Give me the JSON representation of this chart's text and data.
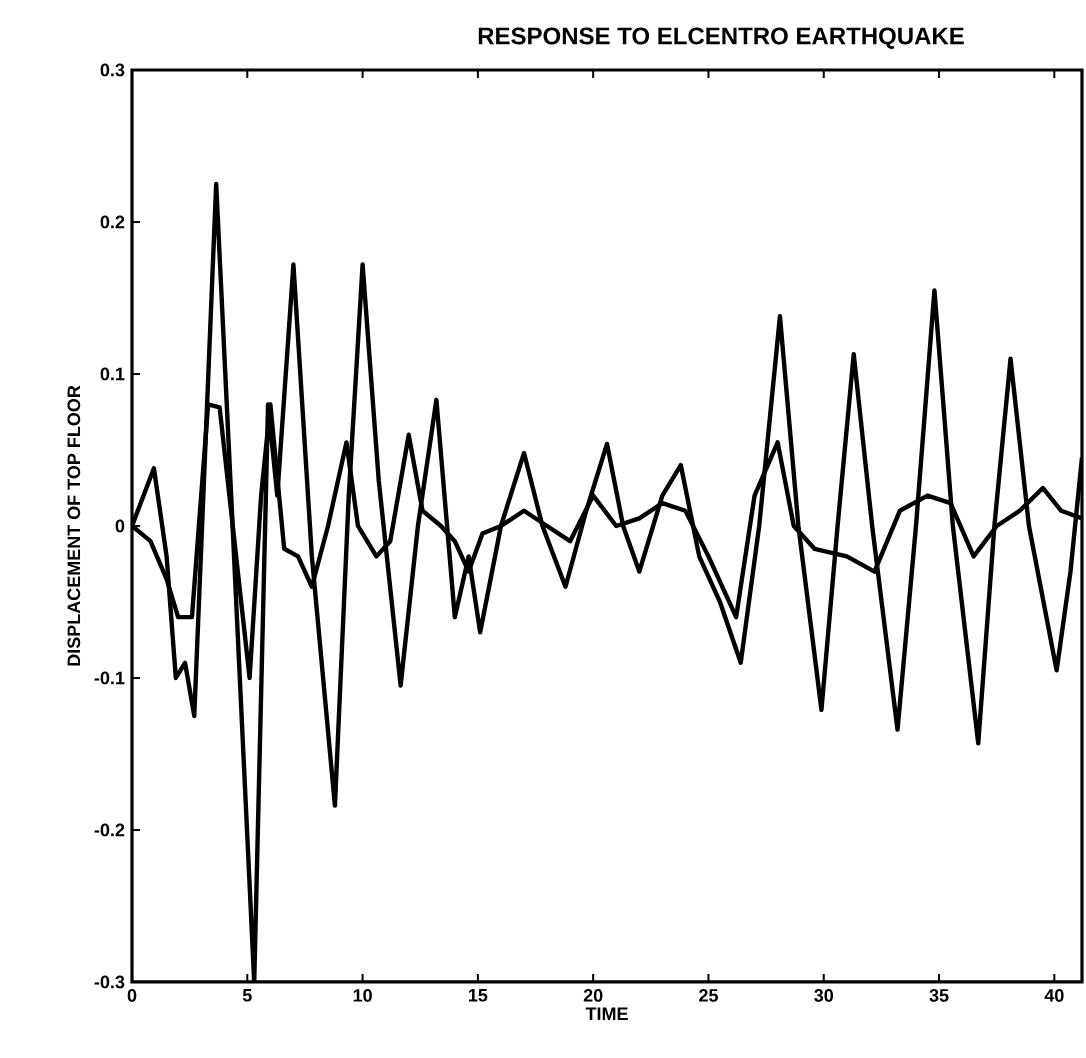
{
  "chart_data": {
    "type": "line",
    "title": "RESPONSE TO ELCENTRO EARTHQUAKE",
    "xlabel": "TIME",
    "ylabel": "DISPLACEMENT OF TOP FLOOR",
    "xlim": [
      0,
      41.2
    ],
    "ylim": [
      -0.3,
      0.3
    ],
    "xticks": [
      0,
      5,
      10,
      15,
      20,
      25,
      30,
      35,
      40
    ],
    "yticks": [
      {
        "value": -0.3,
        "label": "-0.3"
      },
      {
        "value": -0.2,
        "label": "-0.2"
      },
      {
        "value": -0.1,
        "label": "-0.1"
      },
      {
        "value": 0,
        "label": "0"
      },
      {
        "value": 0.1,
        "label": "0.1"
      },
      {
        "value": 0.2,
        "label": "0.2"
      },
      {
        "value": 0.3,
        "label": "0.3"
      }
    ],
    "grid": false,
    "marker": "none",
    "line_style": "solid",
    "series": [
      {
        "color": "#000000",
        "x": [
          0,
          0.95,
          1.5,
          1.9,
          2.3,
          2.7,
          3.65,
          4.3,
          5.3,
          5.9,
          6.3,
          7.0,
          7.8,
          8.8,
          9.4,
          10.0,
          10.7,
          11.65,
          12.4,
          13.2,
          14.0,
          14.6,
          15.1,
          16.0,
          17.0,
          17.8,
          18.8,
          19.7,
          20.6,
          21.3,
          22.0,
          23.0,
          23.8,
          24.6,
          25.5,
          26.4,
          27.2,
          28.1,
          28.9,
          29.9,
          30.6,
          31.3,
          32.1,
          33.2,
          34.0,
          34.8,
          35.6,
          36.7,
          37.4,
          38.1,
          38.9,
          40.1,
          40.7,
          41.2
        ],
        "values": [
          0,
          0.038,
          -0.02,
          -0.1,
          -0.09,
          -0.125,
          0.225,
          0.02,
          -0.3,
          0.08,
          0.02,
          0.172,
          -0.02,
          -0.184,
          0.02,
          0.172,
          0.03,
          -0.105,
          0.0,
          0.083,
          -0.06,
          -0.02,
          -0.07,
          0.0,
          0.048,
          0.0,
          -0.04,
          0.01,
          0.054,
          0.0,
          -0.03,
          0.02,
          0.04,
          -0.02,
          -0.05,
          -0.09,
          0.0,
          0.138,
          0.0,
          -0.121,
          0.0,
          0.113,
          0.0,
          -0.134,
          0.0,
          0.155,
          0.0,
          -0.143,
          0.0,
          0.11,
          0.0,
          -0.095,
          -0.03,
          0.045
        ]
      },
      {
        "color": "#000000",
        "x": [
          0,
          0.8,
          1.5,
          2.0,
          2.6,
          3.3,
          3.8,
          5.1,
          5.6,
          6.0,
          6.6,
          7.2,
          7.8,
          8.5,
          9.3,
          9.8,
          10.6,
          11.2,
          12.0,
          12.6,
          13.4,
          14.0,
          14.6,
          15.2,
          16.0,
          17.0,
          18.0,
          19.0,
          20.0,
          21.0,
          22.0,
          23.0,
          24.0,
          25.0,
          26.2,
          27.0,
          28.0,
          28.7,
          29.6,
          31.0,
          32.2,
          33.3,
          34.5,
          35.5,
          36.5,
          37.5,
          38.5,
          39.5,
          40.3,
          41.2
        ],
        "values": [
          0,
          -0.01,
          -0.035,
          -0.06,
          -0.06,
          0.08,
          0.078,
          -0.1,
          0.02,
          0.08,
          -0.015,
          -0.02,
          -0.04,
          0.0,
          0.055,
          0.0,
          -0.02,
          -0.01,
          0.06,
          0.01,
          0.0,
          -0.01,
          -0.03,
          -0.005,
          0.0,
          0.01,
          0.0,
          -0.01,
          0.02,
          0.0,
          0.005,
          0.015,
          0.01,
          -0.02,
          -0.06,
          0.02,
          0.055,
          0.0,
          -0.015,
          -0.02,
          -0.03,
          0.01,
          0.02,
          0.015,
          -0.02,
          0.0,
          0.01,
          0.025,
          0.01,
          0.005
        ]
      }
    ]
  }
}
